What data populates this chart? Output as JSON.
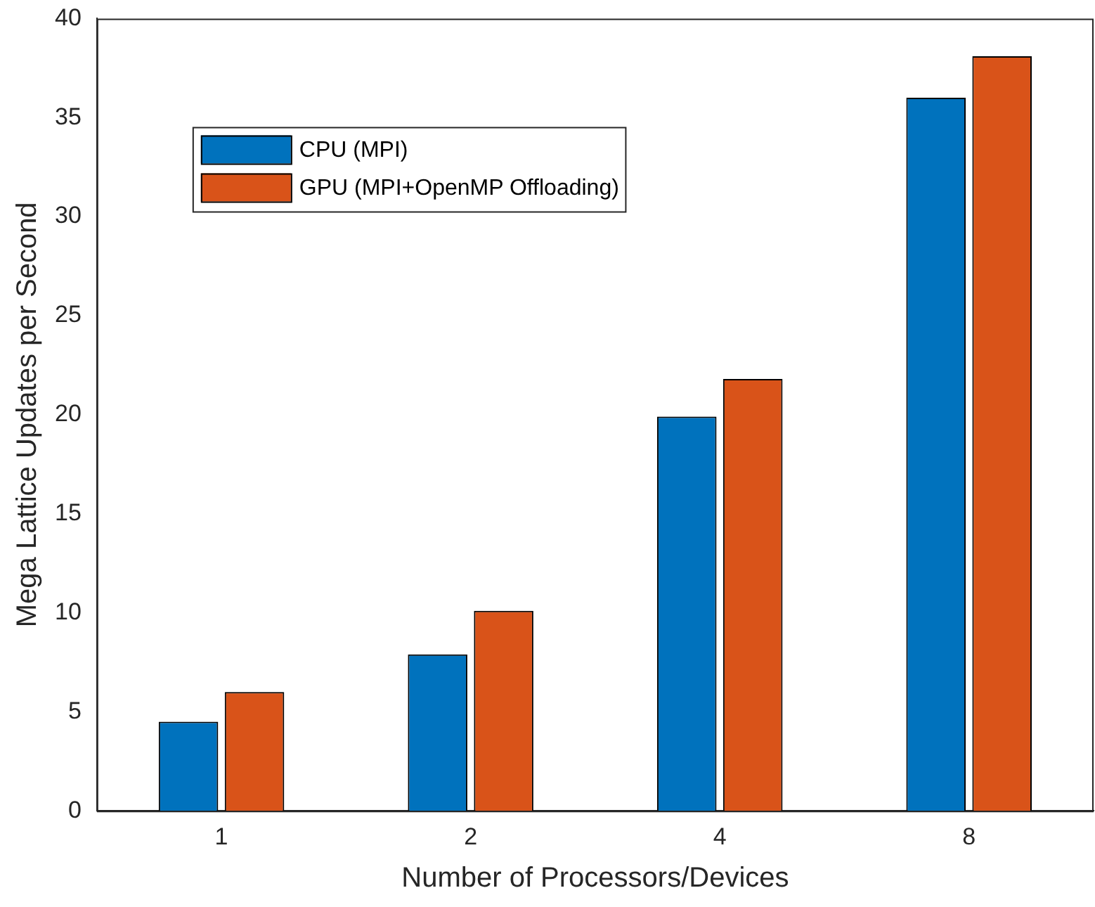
{
  "chart_data": {
    "type": "bar",
    "xlabel": "Number of Processors/Devices",
    "ylabel": "Mega Lattice Updates per Second",
    "categories": [
      "1",
      "2",
      "4",
      "8"
    ],
    "series": [
      {
        "name": "CPU (MPI)",
        "color": "#0072bd",
        "values": [
          4.5,
          7.9,
          19.9,
          36.0
        ]
      },
      {
        "name": "GPU (MPI+OpenMP Offloading)",
        "color": "#d95319",
        "values": [
          6.0,
          10.1,
          21.8,
          38.1
        ]
      }
    ],
    "ylim": [
      0,
      40
    ],
    "yticks": [
      0,
      5,
      10,
      15,
      20,
      25,
      30,
      35,
      40
    ],
    "grid": false,
    "legend": "top left"
  }
}
